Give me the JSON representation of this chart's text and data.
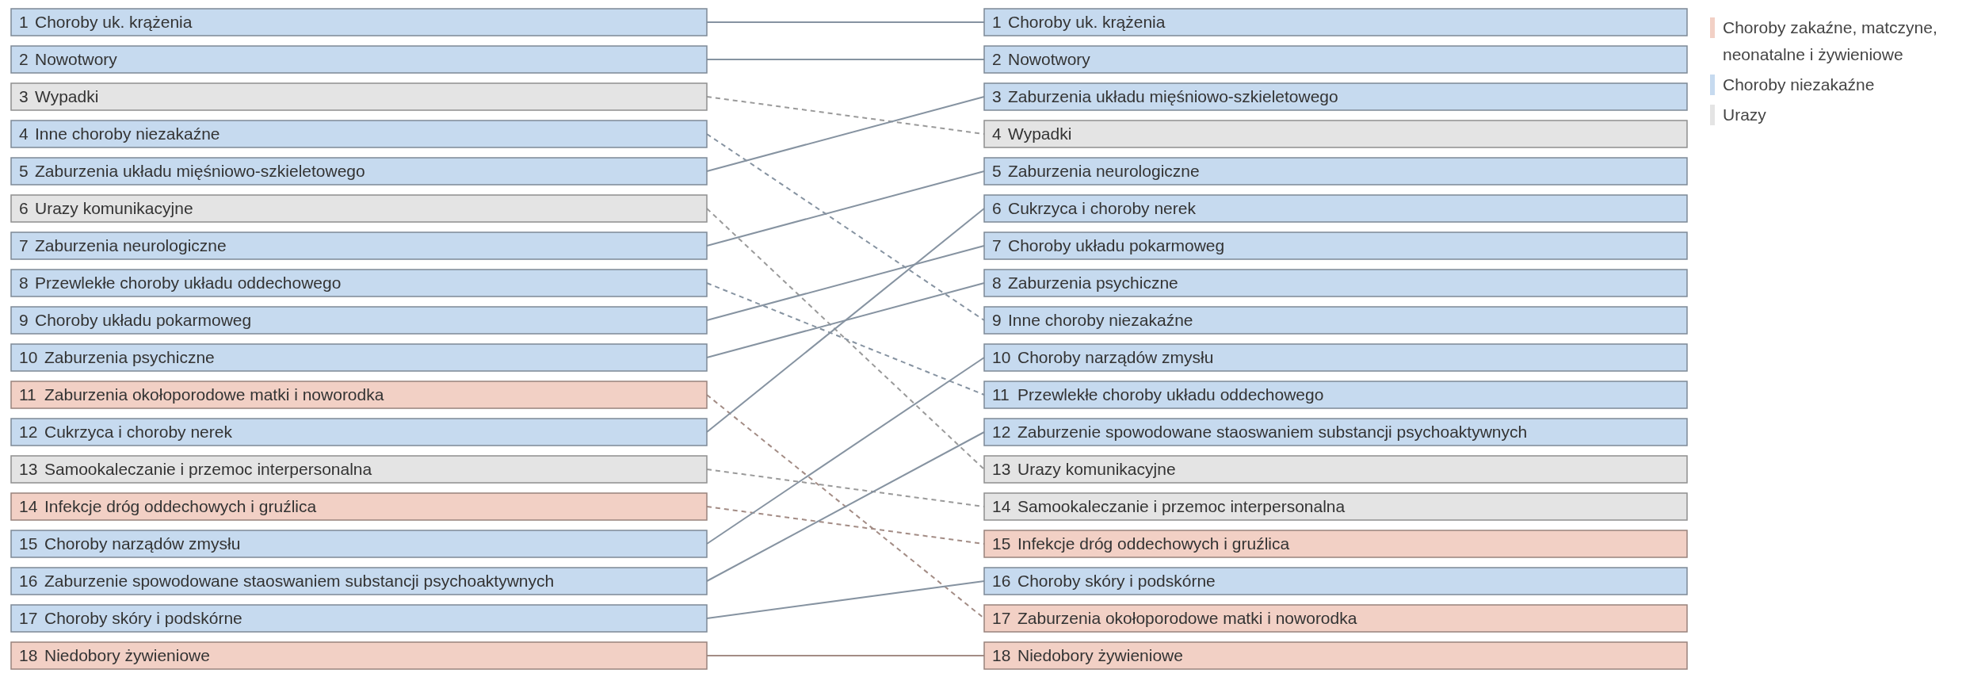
{
  "chart_data": {
    "type": "other",
    "data_labels": true,
    "categories": [
      "Zaburzenia okołoporodowe matki i noworodka",
      "Choroby uk. krążenia",
      "Wypadki",
      "Nowotwory",
      "Inne choroby niezakaźne",
      "Zaburzenia układu mięśniowo-szkieletowego",
      "Urazy komunikacyjne",
      "Zaburzenia neurologiczne",
      "Przewlekłe choroby układu oddechowego",
      "Choroby układu pokarmoweg",
      "Zaburzenia psychiczne",
      "Cukrzyca i choroby nerek",
      "Samookaleczanie i przemoc interpersonalna",
      "Infekcje dróg oddechowych i gruźlica",
      "Choroby narządów zmysłu",
      "Zaburzenie spowodowane staoswaniem substancji psychoaktywnych",
      "Choroby skóry i podskórne",
      "Niedobory żywieniowe"
    ],
    "annotations": [
      "Choroby zakaźne, matczyne, neonatalne i żywieniowe",
      "Choroby niezakaźne",
      "Urazy"
    ],
    "series": [
      {
        "values": [
          11,
          1,
          3,
          2,
          4,
          5,
          6,
          7,
          8,
          9,
          10,
          12,
          13,
          14,
          15,
          16,
          17,
          18
        ],
        "colors": [
          "#f2d0c5",
          "#c6daef",
          "#e4e4e4",
          "#c6daef",
          "#c6daef",
          "#c6daef",
          "#e4e4e4",
          "#c6daef",
          "#c6daef",
          "#c6daef",
          "#c6daef",
          "#c6daef",
          "#e4e4e4",
          "#f2d0c5",
          "#c6daef",
          "#c6daef",
          "#c6daef",
          "#f2d0c5"
        ]
      },
      {
        "values": [
          17,
          1,
          4,
          2,
          9,
          3,
          13,
          5,
          11,
          7,
          8,
          6,
          14,
          15,
          10,
          12,
          16,
          18
        ],
        "colors": [
          "#f2d0c5",
          "#c6daef",
          "#e4e4e4",
          "#c6daef",
          "#c6daef",
          "#c6daef",
          "#e4e4e4",
          "#c6daef",
          "#c6daef",
          "#c6daef",
          "#c6daef",
          "#c6daef",
          "#e4e4e4",
          "#f2d0c5",
          "#c6daef",
          "#c6daef",
          "#c6daef",
          "#f2d0c5"
        ]
      }
    ]
  }
}
